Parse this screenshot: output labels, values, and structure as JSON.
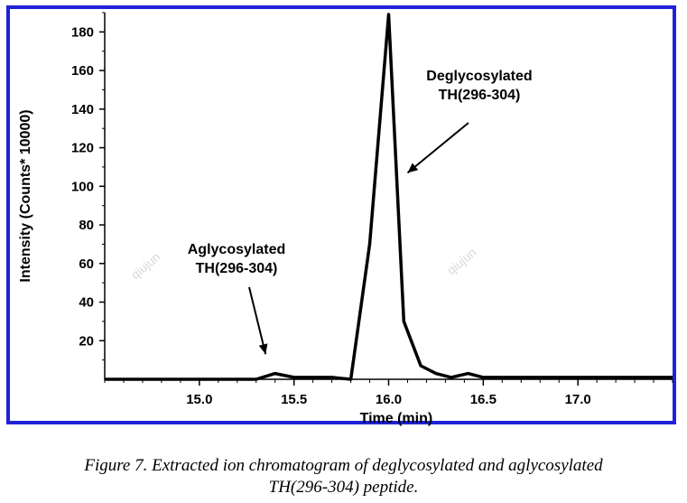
{
  "chart_data": {
    "type": "line",
    "xlabel": "Time (min)",
    "ylabel": "Intensity (Counts* 10000)",
    "xlim": [
      14.5,
      17.5
    ],
    "ylim": [
      0,
      190
    ],
    "x_ticks": [
      "15.0",
      "15.5",
      "16.0",
      "16.5",
      "17.0"
    ],
    "y_ticks": [
      "20",
      "40",
      "60",
      "80",
      "100",
      "120",
      "140",
      "160",
      "180"
    ],
    "grid": false,
    "series": [
      {
        "x": [
          14.5,
          15.3,
          15.4,
          15.5,
          15.7,
          15.8,
          15.9,
          16.0,
          16.08,
          16.17,
          16.25,
          16.33,
          16.42,
          16.5,
          17.0,
          17.5
        ],
        "y": [
          0,
          0,
          3,
          1,
          1,
          0,
          70,
          192,
          30,
          7,
          3,
          1,
          3,
          1,
          1,
          1
        ]
      }
    ],
    "annotations": [
      {
        "lines": [
          "Deglycosylated",
          "TH(296-304)"
        ],
        "points_to_x": 16.1,
        "points_to_y": 107
      },
      {
        "lines": [
          "Aglycosylated",
          "TH(296-304)"
        ],
        "points_to_x": 15.35,
        "points_to_y": 13
      }
    ],
    "watermark": "qiujun"
  },
  "caption": {
    "line1": "Figure 7.  Extracted ion chromatogram of deglycosylated and aglycosylated",
    "line2": "TH(296-304) peptide."
  }
}
